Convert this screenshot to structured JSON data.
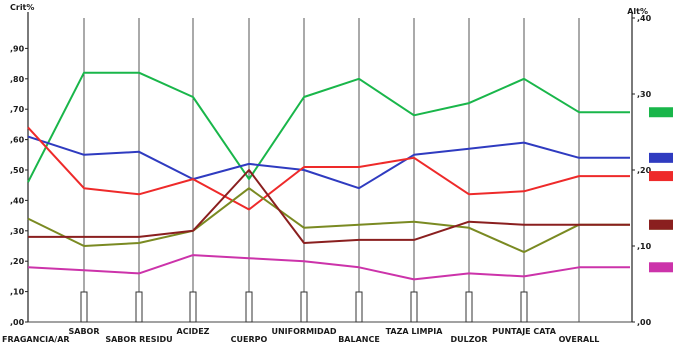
{
  "chart_data": {
    "type": "line",
    "left_axis_label": "Crit%",
    "right_axis_label": "Alt%",
    "left_ticks": [
      ",00",
      ",10",
      ",20",
      ",30",
      ",40",
      ",50",
      ",60",
      ",70",
      ",80",
      ",90"
    ],
    "right_ticks": [
      ",00",
      ",10",
      ",20",
      ",30",
      ",40"
    ],
    "ylim_left": [
      0,
      1.0
    ],
    "ylim_right": [
      0,
      0.4
    ],
    "categories": [
      "FRAGANCIA/AR",
      "SABOR",
      "SABOR RESIDU",
      "ACIDEZ",
      "CUERPO",
      "UNIFORMIDAD",
      "BALANCE",
      "TAZA LIMPIA",
      "DULZOR",
      "PUNTAJE CATA",
      "OVERALL"
    ],
    "series": [
      {
        "color": "#19b64a",
        "values": [
          0.46,
          0.82,
          0.82,
          0.74,
          0.47,
          0.74,
          0.8,
          0.68,
          0.72,
          0.8,
          0.69
        ]
      },
      {
        "color": "#2f3bc0",
        "values": [
          0.61,
          0.55,
          0.56,
          0.47,
          0.52,
          0.5,
          0.44,
          0.55,
          0.57,
          0.59,
          0.54
        ]
      },
      {
        "color": "#ee2a2a",
        "values": [
          0.64,
          0.44,
          0.42,
          0.47,
          0.37,
          0.51,
          0.51,
          0.54,
          0.42,
          0.43,
          0.48
        ]
      },
      {
        "color": "#7a8a22",
        "values": [
          0.34,
          0.25,
          0.26,
          0.3,
          0.44,
          0.31,
          0.32,
          0.33,
          0.31,
          0.23,
          0.32
        ]
      },
      {
        "color": "#8a1f1f",
        "values": [
          0.28,
          0.28,
          0.28,
          0.3,
          0.5,
          0.26,
          0.27,
          0.27,
          0.33,
          0.32,
          0.32
        ]
      },
      {
        "color": "#cc33aa",
        "values": [
          0.18,
          0.17,
          0.16,
          0.22,
          0.21,
          0.2,
          0.18,
          0.14,
          0.16,
          0.15,
          0.18
        ]
      }
    ],
    "legend_position": "right",
    "grid": "vertical"
  }
}
